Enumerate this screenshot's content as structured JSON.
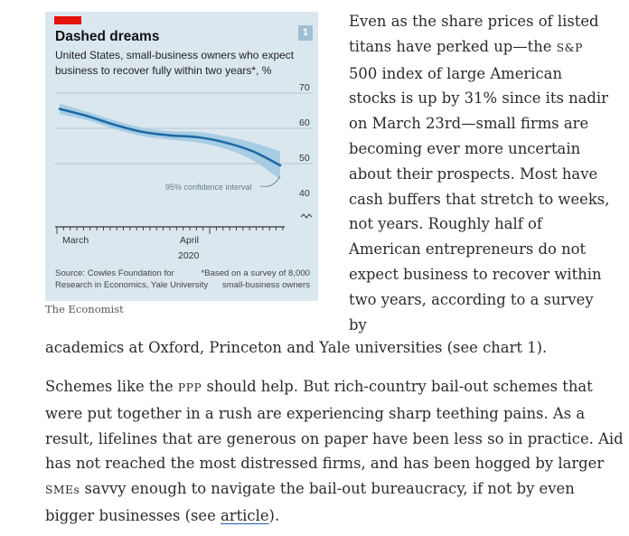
{
  "chart": {
    "number": "1",
    "title": "Dashed dreams",
    "subtitle": "United States, small-business owners who expect business to recover fully within two years*, %",
    "annotation": "95% confidence interval",
    "source_line1": "Source: Cowles Foundation for",
    "source_line2": "Research in Economics, Yale University",
    "note_line1": "*Based on a survey of 8,000",
    "note_line2": "small-business owners",
    "brand": "The Economist",
    "accent_color": "#e3120b",
    "line_color": "#1f6aa5",
    "band_color": "#9ec8e2",
    "background_color": "#dbe7ef"
  },
  "chart_data": {
    "type": "line",
    "ylim": [
      40,
      70
    ],
    "yticks": [
      "70",
      "60",
      "50",
      "40"
    ],
    "xticks": [
      "March",
      "April"
    ],
    "xyear": "2020",
    "series": [
      {
        "x": [
          "Mar 5",
          "Mar 12",
          "Mar 19",
          "Mar 26",
          "Apr 2",
          "Apr 9",
          "Apr 16",
          "Apr 23",
          "Apr 30"
        ],
        "y": [
          65.5,
          63.5,
          61.0,
          59.0,
          58.0,
          57.5,
          56.0,
          53.5,
          49.5
        ],
        "lower": [
          64.0,
          62.3,
          59.8,
          57.8,
          56.8,
          56.0,
          54.2,
          51.0,
          45.5
        ],
        "upper": [
          67.0,
          64.7,
          62.2,
          60.2,
          59.2,
          59.0,
          57.8,
          56.0,
          53.5
        ]
      }
    ],
    "grid": true
  },
  "article": {
    "p1_a": "Even as the share prices of listed titans have perked up—the ",
    "p1_sp": "S&P",
    "p1_b": " 500 index of large American stocks is up by 31% since its nadir on March 23rd—small firms are becoming ever more uncertain about their prospects. Most have cash buffers that stretch to weeks, not years. Roughly half of American entrepreneurs do not expect business to recover within two years, according to a survey by",
    "p1_c": "academics at Oxford, Princeton and Yale universities (see chart 1).",
    "p2_a": "Schemes like the ",
    "p2_ppp": "PPP",
    "p2_b": " should help. But rich-country bail-out schemes that were put together in a rush are experiencing sharp teething pains. As a result, lifelines that are generous on paper have been less so in practice. Aid has not reached the most distressed firms, and has been hogged by larger ",
    "p2_smes": "SMEs",
    "p2_c": " savvy enough to navigate the bail-out bureaucracy, if not by even bigger businesses (see ",
    "p2_link": "article",
    "p2_d": ")."
  }
}
